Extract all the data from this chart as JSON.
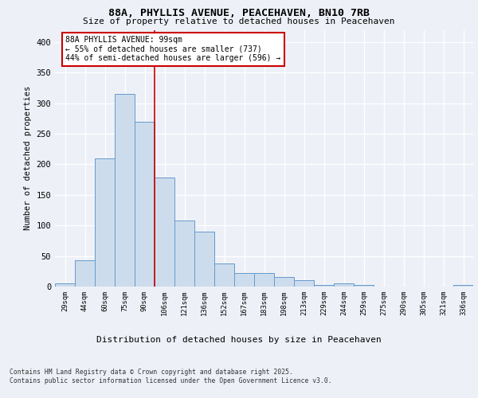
{
  "title_line1": "88A, PHYLLIS AVENUE, PEACEHAVEN, BN10 7RB",
  "title_line2": "Size of property relative to detached houses in Peacehaven",
  "xlabel": "Distribution of detached houses by size in Peacehaven",
  "ylabel": "Number of detached properties",
  "bar_labels": [
    "29sqm",
    "44sqm",
    "60sqm",
    "75sqm",
    "90sqm",
    "106sqm",
    "121sqm",
    "136sqm",
    "152sqm",
    "167sqm",
    "183sqm",
    "198sqm",
    "213sqm",
    "229sqm",
    "244sqm",
    "259sqm",
    "275sqm",
    "290sqm",
    "305sqm",
    "321sqm",
    "336sqm"
  ],
  "bar_values": [
    5,
    43,
    210,
    315,
    270,
    178,
    108,
    90,
    38,
    22,
    22,
    15,
    11,
    2,
    5,
    2,
    0,
    0,
    0,
    0,
    3
  ],
  "bar_color": "#cddcec",
  "bar_edge_color": "#6699cc",
  "vline_x": 4.5,
  "vline_color": "#cc0000",
  "annotation_text": "88A PHYLLIS AVENUE: 99sqm\n← 55% of detached houses are smaller (737)\n44% of semi-detached houses are larger (596) →",
  "annotation_box_edgecolor": "#cc0000",
  "ylim": [
    0,
    420
  ],
  "yticks": [
    0,
    50,
    100,
    150,
    200,
    250,
    300,
    350,
    400
  ],
  "footnote1": "Contains HM Land Registry data © Crown copyright and database right 2025.",
  "footnote2": "Contains public sector information licensed under the Open Government Licence v3.0.",
  "background_color": "#edf1f7",
  "grid_color": "#ffffff"
}
